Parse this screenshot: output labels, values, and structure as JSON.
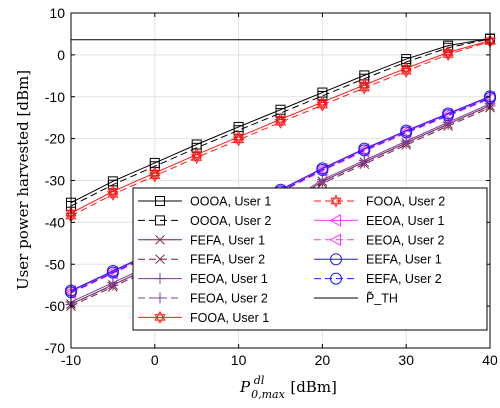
{
  "chart_data": {
    "type": "line",
    "xlabel": "P_{0,max}^{dl} [dBm]",
    "ylabel": "User power harvested [dBm]",
    "xlim": [
      -10,
      40
    ],
    "ylim": [
      -70,
      10
    ],
    "xticks": [
      -10,
      0,
      10,
      20,
      30,
      40
    ],
    "yticks": [
      10,
      0,
      -10,
      -20,
      -30,
      -40,
      -50,
      -60,
      -70
    ],
    "grid": true,
    "legend_position": "bottom-right",
    "legend_columns": 2,
    "x": [
      -10,
      -5,
      0,
      5,
      10,
      15,
      20,
      25,
      30,
      35,
      40
    ],
    "series": [
      {
        "name": "OOOA, User 1",
        "color": "#000000",
        "dash": "solid",
        "marker": "square",
        "values": [
          -35.3,
          -30.2,
          -25.8,
          -21.4,
          -17.2,
          -13.1,
          -9.0,
          -4.9,
          -1.0,
          2.2,
          3.9
        ]
      },
      {
        "name": "OOOA, User 2",
        "color": "#000000",
        "dash": "dashed",
        "marker": "square",
        "values": [
          -36.1,
          -31.0,
          -26.6,
          -22.2,
          -18.0,
          -13.9,
          -9.8,
          -5.7,
          -1.7,
          1.7,
          3.8
        ]
      },
      {
        "name": "FEFA, User 1",
        "color": "#7a1f3d",
        "dash": "solid",
        "marker": "x",
        "values": [
          -59.5,
          -54.9,
          -50.3,
          -45.8,
          -41.2,
          -36.8,
          -30.2,
          -25.6,
          -21.0,
          -16.5,
          -12.1
        ]
      },
      {
        "name": "FEFA, User 2",
        "color": "#7a1f3d",
        "dash": "dashed",
        "marker": "x",
        "values": [
          -60.0,
          -55.4,
          -50.8,
          -46.3,
          -41.7,
          -37.3,
          -30.7,
          -26.1,
          -21.5,
          -17.0,
          -12.6
        ]
      },
      {
        "name": "FEOA, User 1",
        "color": "#7a3f9a",
        "dash": "solid",
        "marker": "plus",
        "values": [
          -59.0,
          -54.4,
          -49.8,
          -45.3,
          -40.7,
          -36.3,
          -29.8,
          -25.2,
          -20.6,
          -16.1,
          -11.7
        ]
      },
      {
        "name": "FEOA, User 2",
        "color": "#7a3f9a",
        "dash": "dashed",
        "marker": "plus",
        "values": [
          -59.6,
          -55.0,
          -50.4,
          -45.9,
          -41.3,
          -36.9,
          -30.3,
          -25.7,
          -21.1,
          -16.6,
          -12.2
        ]
      },
      {
        "name": "FOOA, User 1",
        "color": "#ff1a1a",
        "dash": "solid",
        "marker": "hexagram",
        "values": [
          -37.8,
          -32.6,
          -28.2,
          -23.8,
          -19.6,
          -15.4,
          -11.3,
          -7.2,
          -3.2,
          0.6,
          3.4
        ]
      },
      {
        "name": "FOOA, User 2",
        "color": "#ff1a1a",
        "dash": "dashed",
        "marker": "hexagram",
        "values": [
          -38.5,
          -33.3,
          -28.9,
          -24.5,
          -20.3,
          -16.1,
          -12.0,
          -7.9,
          -3.9,
          0.1,
          3.2
        ]
      },
      {
        "name": "EEOA, User 1",
        "color": "#ff33ff",
        "dash": "solid",
        "marker": "triangle-left",
        "values": [
          -56.5,
          -51.8,
          -47.1,
          -42.3,
          -37.5,
          -32.4,
          -27.3,
          -22.6,
          -18.3,
          -14.2,
          -10.1
        ]
      },
      {
        "name": "EEOA, User 2",
        "color": "#ff33ff",
        "dash": "dashed",
        "marker": "triangle-left",
        "values": [
          -56.9,
          -52.2,
          -47.5,
          -42.7,
          -37.9,
          -32.8,
          -27.7,
          -23.0,
          -18.7,
          -14.6,
          -10.5
        ]
      },
      {
        "name": "EEFA, User 1",
        "color": "#1a1aff",
        "dash": "solid",
        "marker": "circle",
        "values": [
          -56.3,
          -51.6,
          -46.9,
          -42.1,
          -37.3,
          -32.2,
          -27.1,
          -22.4,
          -18.1,
          -14.0,
          -9.9
        ]
      },
      {
        "name": "EEFA, User 2",
        "color": "#1a1aff",
        "dash": "dashed",
        "marker": "circle",
        "values": [
          -56.7,
          -52.0,
          -47.3,
          -42.5,
          -37.7,
          -32.6,
          -27.5,
          -22.8,
          -18.5,
          -14.4,
          -10.3
        ]
      },
      {
        "name": "P̃_TH",
        "color": "#000000",
        "dash": "solid",
        "marker": "none",
        "values": [
          3.6,
          3.6,
          3.6,
          3.6,
          3.6,
          3.6,
          3.6,
          3.6,
          3.6,
          3.6,
          3.6
        ]
      }
    ]
  }
}
